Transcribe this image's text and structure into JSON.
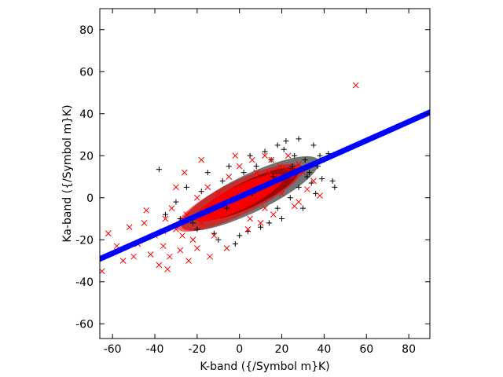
{
  "chart_data": {
    "type": "scatter",
    "title": "",
    "xlabel": "K-band ({/Symbol m}K)",
    "ylabel": "Ka-band ({/Symbol m}K)",
    "xlim": [
      -66,
      90
    ],
    "ylim": [
      -67,
      90
    ],
    "xticks": [
      -60,
      -40,
      -20,
      0,
      20,
      40,
      60,
      80
    ],
    "yticks": [
      -60,
      -40,
      -20,
      0,
      20,
      40,
      60,
      80
    ],
    "grid": false,
    "legend": "none",
    "series": [
      {
        "marker": "plus",
        "color": "#000000",
        "points": [
          [
            -38,
            13.5
          ],
          [
            28,
            28
          ],
          [
            22,
            27
          ],
          [
            18,
            25
          ],
          [
            35,
            25
          ],
          [
            42,
            21
          ],
          [
            38,
            20
          ],
          [
            40,
            18
          ],
          [
            44,
            8
          ],
          [
            45,
            5
          ],
          [
            33,
            12
          ],
          [
            12,
            22
          ],
          [
            5,
            20
          ],
          [
            -5,
            15
          ],
          [
            -15,
            12
          ],
          [
            -25,
            5
          ],
          [
            -30,
            -2
          ],
          [
            -35,
            -8
          ],
          [
            -20,
            -15
          ],
          [
            -10,
            -20
          ],
          [
            0,
            -18
          ],
          [
            10,
            -14
          ],
          [
            20,
            -10
          ],
          [
            30,
            -5
          ],
          [
            36,
            2
          ],
          [
            25,
            15
          ],
          [
            15,
            18
          ],
          [
            -2,
            -22
          ],
          [
            -12,
            -17
          ],
          [
            28,
            5
          ],
          [
            32,
            10
          ],
          [
            18,
            -5
          ],
          [
            8,
            15
          ],
          [
            -8,
            8
          ],
          [
            -18,
            3
          ],
          [
            26,
            20
          ],
          [
            37,
            15
          ],
          [
            39,
            9
          ],
          [
            31,
            18
          ],
          [
            14,
            -12
          ],
          [
            4,
            -16
          ],
          [
            -22,
            -12
          ],
          [
            -28,
            -10
          ],
          [
            2,
            12
          ],
          [
            21,
            23
          ],
          [
            34,
            7
          ],
          [
            24,
            0
          ],
          [
            16,
            10
          ],
          [
            6,
            2
          ],
          [
            -6,
            -5
          ]
        ]
      },
      {
        "marker": "cross",
        "color": "#ff0000",
        "points": [
          [
            55,
            53.5
          ],
          [
            -65,
            -35
          ],
          [
            -62,
            -17
          ],
          [
            -58,
            -23
          ],
          [
            -55,
            -30
          ],
          [
            -50,
            -28
          ],
          [
            -48,
            -22
          ],
          [
            -45,
            -12
          ],
          [
            -42,
            -27
          ],
          [
            -40,
            -18
          ],
          [
            -38,
            -32
          ],
          [
            -36,
            -23
          ],
          [
            -35,
            -10
          ],
          [
            -33,
            -28
          ],
          [
            -32,
            -5
          ],
          [
            -30,
            -15
          ],
          [
            -28,
            -25
          ],
          [
            -25,
            -8
          ],
          [
            -22,
            -20
          ],
          [
            -20,
            0
          ],
          [
            -18,
            -12
          ],
          [
            -15,
            5
          ],
          [
            -12,
            -18
          ],
          [
            -10,
            2
          ],
          [
            -8,
            -8
          ],
          [
            -5,
            10
          ],
          [
            -3,
            -5
          ],
          [
            0,
            15
          ],
          [
            2,
            0
          ],
          [
            5,
            -10
          ],
          [
            8,
            12
          ],
          [
            10,
            5
          ],
          [
            12,
            -5
          ],
          [
            15,
            18
          ],
          [
            18,
            8
          ],
          [
            20,
            2
          ],
          [
            22,
            14
          ],
          [
            25,
            10
          ],
          [
            28,
            -2
          ],
          [
            30,
            12
          ],
          [
            32,
            4
          ],
          [
            35,
            8
          ],
          [
            -2,
            20
          ],
          [
            -26,
            12
          ],
          [
            -18,
            18
          ],
          [
            12,
            20
          ],
          [
            -44,
            -6
          ],
          [
            -52,
            -14
          ],
          [
            26,
            -4
          ],
          [
            16,
            -8
          ],
          [
            4,
            -15
          ],
          [
            -6,
            -24
          ],
          [
            -14,
            -28
          ],
          [
            -24,
            -30
          ],
          [
            -34,
            -34
          ],
          [
            7,
            6
          ],
          [
            -9,
            -3
          ],
          [
            19,
            15
          ],
          [
            -16,
            -6
          ],
          [
            23,
            20
          ],
          [
            -30,
            5
          ],
          [
            38,
            1
          ],
          [
            14,
            12
          ],
          [
            -4,
            3
          ],
          [
            6,
            18
          ],
          [
            -36,
            -16
          ],
          [
            28,
            16
          ],
          [
            -20,
            -24
          ],
          [
            10,
            -12
          ],
          [
            -27,
            -18
          ]
        ]
      },
      {
        "marker": "dot",
        "color": "#0000ff",
        "fit": {
          "slope": 0.4474,
          "intercept": 0.4,
          "x_range": [
            -66,
            90
          ]
        }
      }
    ],
    "cloud": {
      "black": {
        "center": [
          5,
          2
        ],
        "angle_deg": 26,
        "rx": 36,
        "ry": 9,
        "color": "#000000"
      },
      "red": {
        "center": [
          0,
          0
        ],
        "angle_deg": 26,
        "rx": 33,
        "ry": 8,
        "color": "#ff0000"
      }
    }
  }
}
